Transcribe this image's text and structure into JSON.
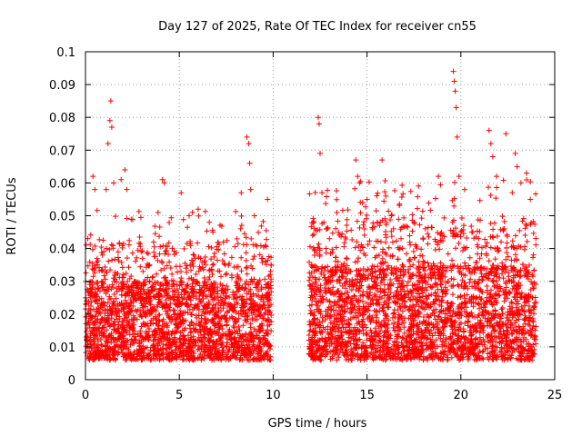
{
  "chart_data": {
    "type": "scatter",
    "title": "Day 127 of 2025, Rate Of TEC Index for receiver cn55",
    "xlabel": "GPS time / hours",
    "ylabel": "ROTI / TECUs",
    "xlim": [
      0,
      25
    ],
    "ylim": [
      0,
      0.1
    ],
    "x_ticks": [
      0,
      5,
      10,
      15,
      20,
      25
    ],
    "x_tick_labels": [
      "0",
      "5",
      "10",
      "15",
      "20",
      "25"
    ],
    "y_ticks": [
      0,
      0.01,
      0.02,
      0.03,
      0.04,
      0.05,
      0.06,
      0.07,
      0.08,
      0.09,
      0.1
    ],
    "y_tick_labels": [
      "0",
      "0.01",
      "0.02",
      "0.03",
      "0.04",
      "0.05",
      "0.06",
      "0.07",
      "0.08",
      "0.09",
      "0.1"
    ],
    "grid": true,
    "marker": "+",
    "color": "#ff0000",
    "series": [
      {
        "name": "ROTI",
        "segments": [
          {
            "x_range": [
              0.0,
              9.9
            ],
            "typical_range": [
              0.006,
              0.03
            ]
          },
          {
            "x_range": [
              11.9,
              24.0
            ],
            "typical_range": [
              0.006,
              0.035
            ]
          }
        ],
        "peaks": [
          {
            "x": 0.4,
            "y": 0.062
          },
          {
            "x": 0.5,
            "y": 0.058
          },
          {
            "x": 1.1,
            "y": 0.058
          },
          {
            "x": 1.2,
            "y": 0.072
          },
          {
            "x": 1.3,
            "y": 0.079
          },
          {
            "x": 1.35,
            "y": 0.085
          },
          {
            "x": 1.4,
            "y": 0.077
          },
          {
            "x": 1.5,
            "y": 0.06
          },
          {
            "x": 1.9,
            "y": 0.061
          },
          {
            "x": 2.1,
            "y": 0.064
          },
          {
            "x": 2.2,
            "y": 0.058
          },
          {
            "x": 4.1,
            "y": 0.061
          },
          {
            "x": 4.2,
            "y": 0.06
          },
          {
            "x": 5.1,
            "y": 0.057
          },
          {
            "x": 5.7,
            "y": 0.051
          },
          {
            "x": 6.0,
            "y": 0.052
          },
          {
            "x": 6.6,
            "y": 0.048
          },
          {
            "x": 8.3,
            "y": 0.057
          },
          {
            "x": 8.6,
            "y": 0.074
          },
          {
            "x": 8.7,
            "y": 0.072
          },
          {
            "x": 8.75,
            "y": 0.066
          },
          {
            "x": 8.8,
            "y": 0.058
          },
          {
            "x": 9.0,
            "y": 0.05
          },
          {
            "x": 9.7,
            "y": 0.055
          },
          {
            "x": 12.1,
            "y": 0.044
          },
          {
            "x": 12.4,
            "y": 0.08
          },
          {
            "x": 12.45,
            "y": 0.078
          },
          {
            "x": 12.5,
            "y": 0.069
          },
          {
            "x": 12.6,
            "y": 0.057
          },
          {
            "x": 12.7,
            "y": 0.048
          },
          {
            "x": 13.0,
            "y": 0.043
          },
          {
            "x": 14.4,
            "y": 0.067
          },
          {
            "x": 14.5,
            "y": 0.062
          },
          {
            "x": 14.6,
            "y": 0.06
          },
          {
            "x": 15.0,
            "y": 0.055
          },
          {
            "x": 15.8,
            "y": 0.067
          },
          {
            "x": 16.0,
            "y": 0.056
          },
          {
            "x": 16.3,
            "y": 0.05
          },
          {
            "x": 17.5,
            "y": 0.048
          },
          {
            "x": 18.8,
            "y": 0.062
          },
          {
            "x": 19.6,
            "y": 0.094
          },
          {
            "x": 19.65,
            "y": 0.091
          },
          {
            "x": 19.7,
            "y": 0.088
          },
          {
            "x": 19.75,
            "y": 0.083
          },
          {
            "x": 19.8,
            "y": 0.074
          },
          {
            "x": 19.9,
            "y": 0.062
          },
          {
            "x": 20.2,
            "y": 0.058
          },
          {
            "x": 21.5,
            "y": 0.076
          },
          {
            "x": 21.6,
            "y": 0.072
          },
          {
            "x": 21.7,
            "y": 0.068
          },
          {
            "x": 21.9,
            "y": 0.062
          },
          {
            "x": 22.4,
            "y": 0.075
          },
          {
            "x": 22.9,
            "y": 0.069
          },
          {
            "x": 23.0,
            "y": 0.065
          },
          {
            "x": 23.2,
            "y": 0.06
          },
          {
            "x": 23.5,
            "y": 0.063
          },
          {
            "x": 23.7,
            "y": 0.055
          }
        ]
      }
    ]
  }
}
